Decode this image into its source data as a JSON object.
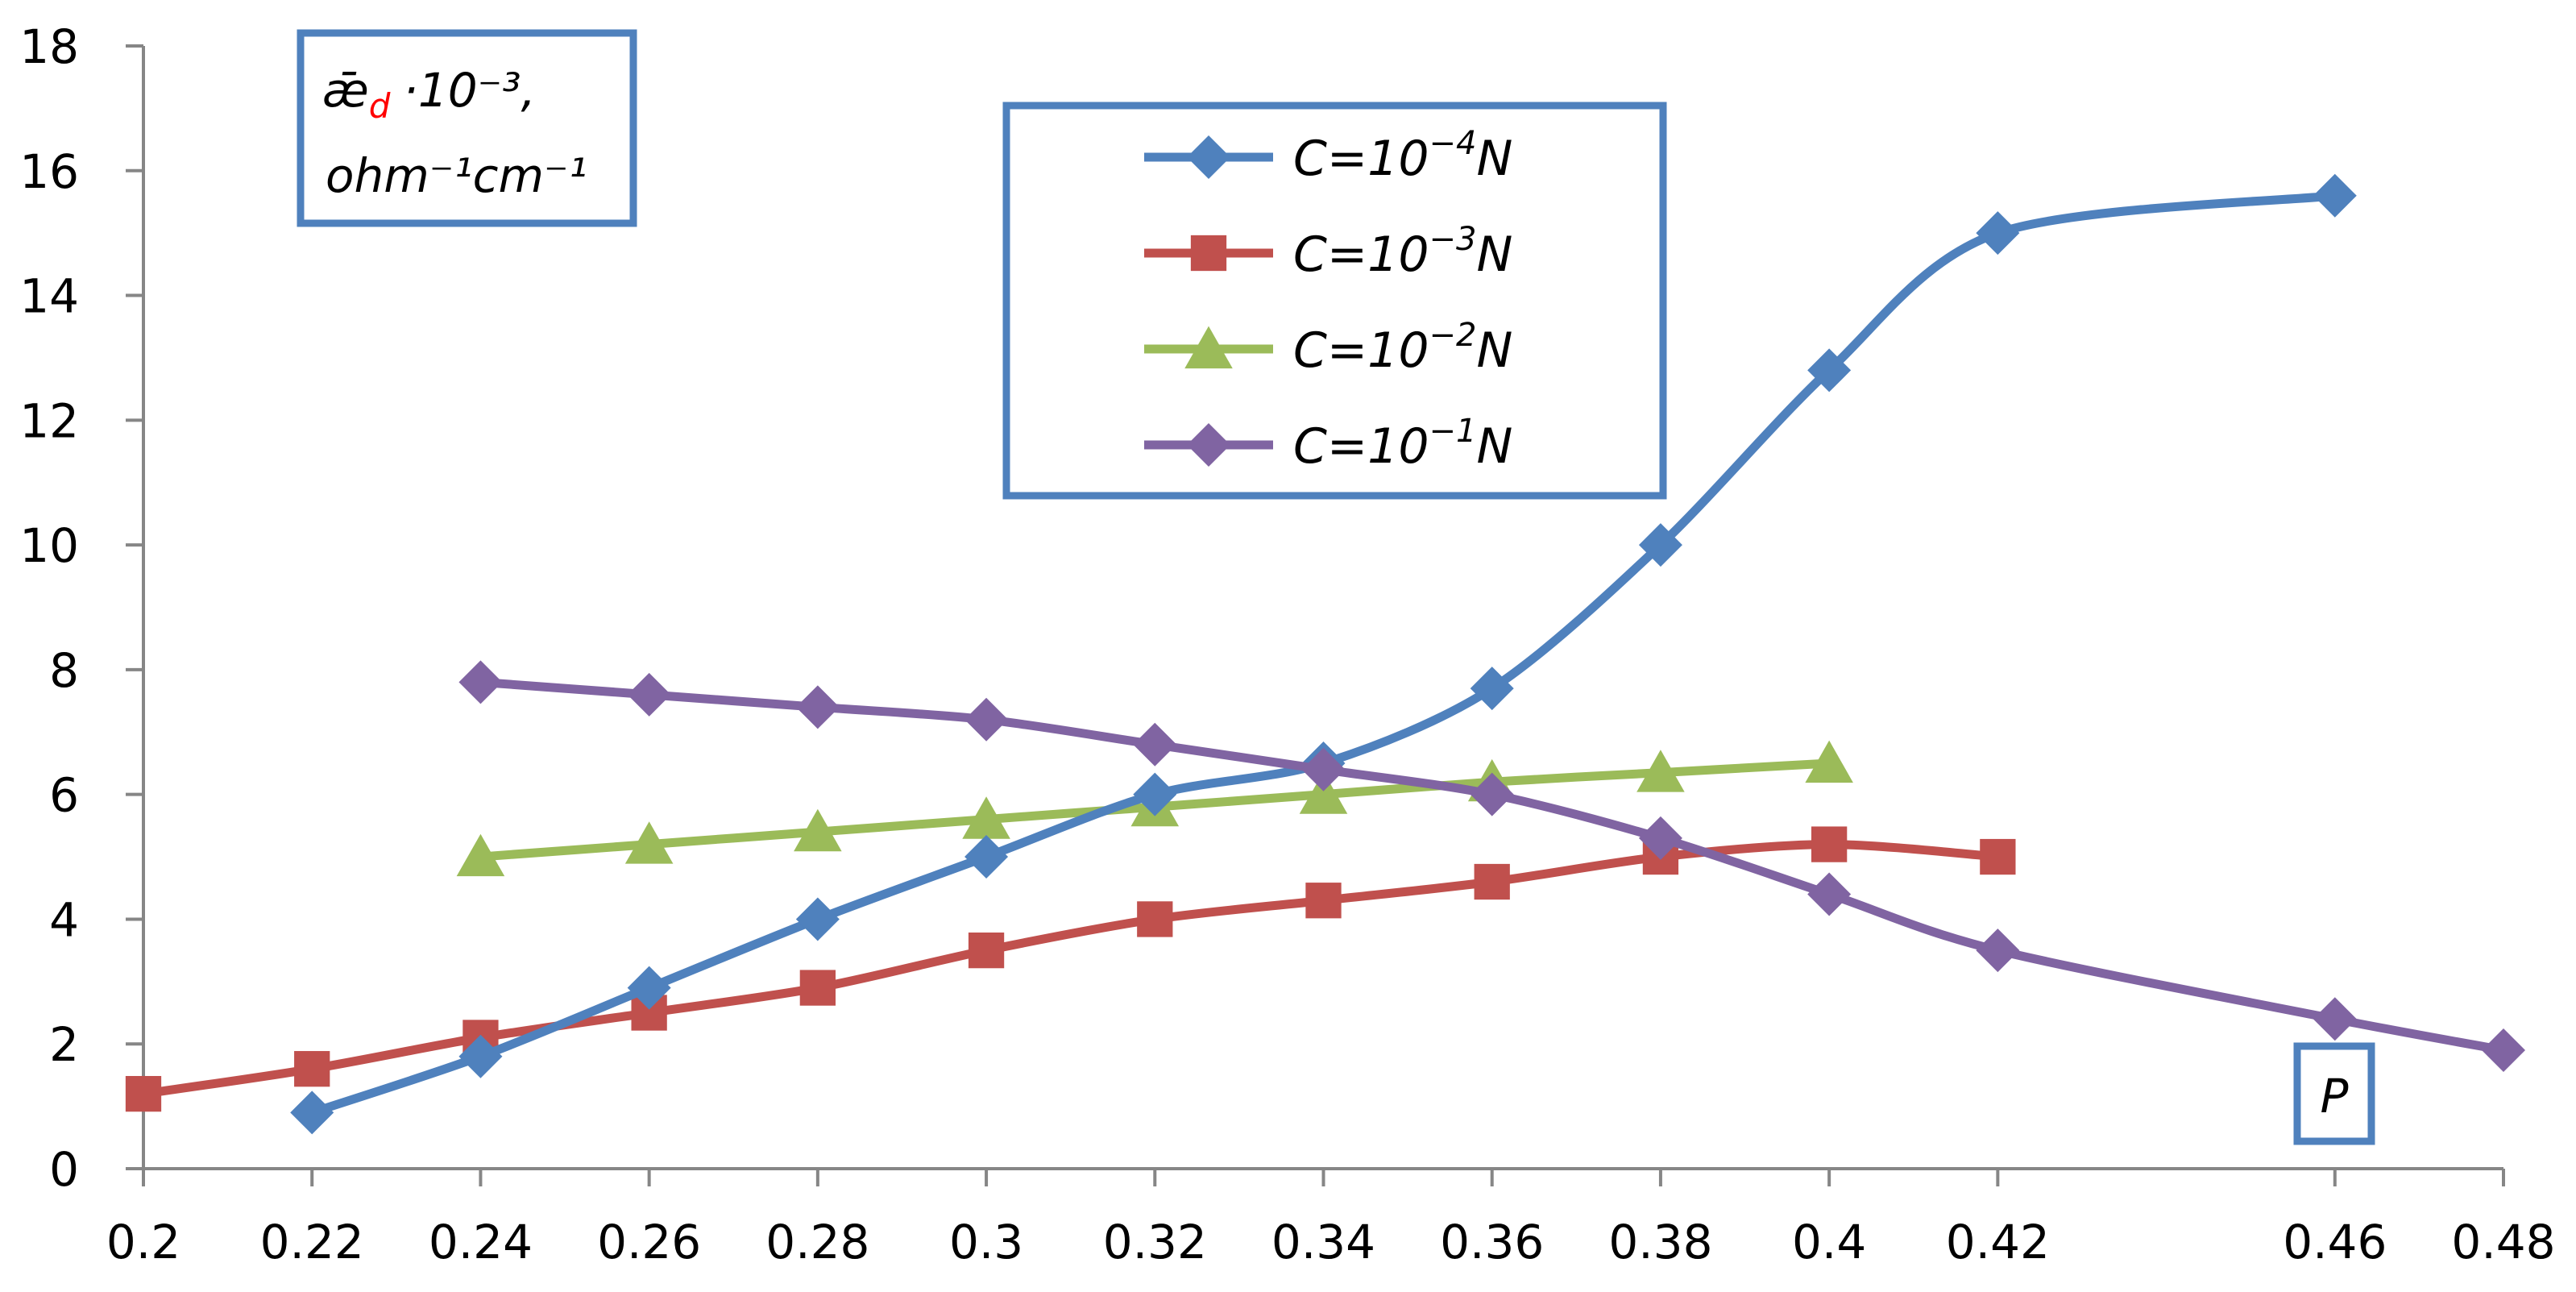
{
  "chart_data": {
    "type": "line",
    "title": "",
    "ylabel": {
      "symbol": "ǣ",
      "subscript": "d",
      "scale": "·10⁻³,",
      "units": "ohm⁻¹cm⁻¹"
    },
    "xlabel": "P",
    "xlim": [
      0.2,
      0.48
    ],
    "ylim": [
      0,
      18
    ],
    "x_ticks": [
      "0.2",
      "0.22",
      "0.24",
      "0.26",
      "0.28",
      "0.3",
      "0.32",
      "0.34",
      "0.36",
      "0.38",
      "0.4",
      "0.42",
      "0.46",
      "0.48"
    ],
    "y_ticks": [
      "0",
      "2",
      "4",
      "6",
      "8",
      "10",
      "12",
      "14",
      "16",
      "18"
    ],
    "grid": false,
    "legend_position": "top-center",
    "series": [
      {
        "name_prefix": "C=10",
        "exponent": "−4",
        "name_suffix": "N",
        "color": "#4F81BD",
        "marker": "diamond",
        "x": [
          0.22,
          0.24,
          0.26,
          0.28,
          0.3,
          0.32,
          0.34,
          0.36,
          0.38,
          0.4,
          0.42,
          0.46
        ],
        "y": [
          0.9,
          1.8,
          2.9,
          4.0,
          5.0,
          6.0,
          6.5,
          7.7,
          10.0,
          12.8,
          15.0,
          15.6
        ]
      },
      {
        "name_prefix": "C=10",
        "exponent": "−3",
        "name_suffix": "N",
        "color": "#C0504D",
        "marker": "square",
        "x": [
          0.2,
          0.22,
          0.24,
          0.26,
          0.28,
          0.3,
          0.32,
          0.34,
          0.36,
          0.38,
          0.4,
          0.42
        ],
        "y": [
          1.2,
          1.6,
          2.1,
          2.5,
          2.9,
          3.5,
          4.0,
          4.3,
          4.6,
          5.0,
          5.2,
          5.0
        ]
      },
      {
        "name_prefix": "C=10",
        "exponent": "−2",
        "name_suffix": "N",
        "color": "#9BBB59",
        "marker": "triangle",
        "x": [
          0.24,
          0.26,
          0.28,
          0.3,
          0.32,
          0.34,
          0.36,
          0.38,
          0.4
        ],
        "y": [
          5.0,
          5.2,
          5.4,
          5.6,
          5.8,
          6.0,
          6.2,
          6.35,
          6.5
        ]
      },
      {
        "name_prefix": "C=10",
        "exponent": "−1",
        "name_suffix": "N",
        "color": "#8064A2",
        "marker": "diamond",
        "x": [
          0.24,
          0.26,
          0.28,
          0.3,
          0.32,
          0.34,
          0.36,
          0.38,
          0.4,
          0.42,
          0.46,
          0.48
        ],
        "y": [
          7.8,
          7.6,
          7.4,
          7.2,
          6.8,
          6.4,
          6.0,
          5.3,
          4.4,
          3.5,
          2.4,
          1.9
        ]
      }
    ]
  },
  "colors": {
    "box_border": "#4F81BD",
    "axis": "#868686",
    "ylabel_subscript": "#FF0000"
  }
}
